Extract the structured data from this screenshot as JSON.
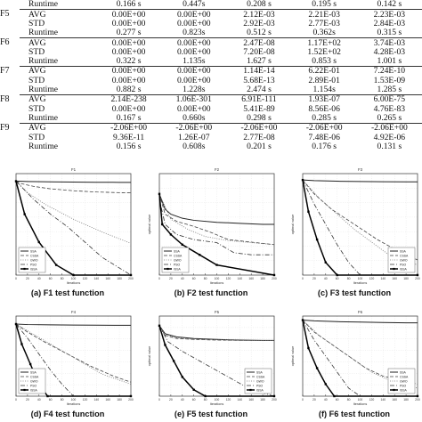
{
  "table": {
    "rows": [
      {
        "fn": "",
        "metric": "Runtime",
        "values": [
          "0.166 s",
          "0.447s",
          "0.208 s",
          "0.195 s",
          "0.142 s"
        ],
        "group_first": false,
        "last": true
      },
      {
        "fn": "F5",
        "metric": "AVG",
        "values": [
          "0.00E+00",
          "0.00E+00",
          "2.12E-03",
          "2.21E-03",
          "2.23E-03"
        ],
        "group_first": true,
        "last": false
      },
      {
        "fn": "",
        "metric": "STD",
        "values": [
          "0.00E+00",
          "0.00E+00",
          "2.92E-03",
          "2.77E-03",
          "2.84E-03"
        ],
        "group_first": false,
        "last": false
      },
      {
        "fn": "",
        "metric": "Runtime",
        "values": [
          "0.277 s",
          "0.823s",
          "0.512 s",
          "0.362s",
          "0.315 s"
        ],
        "group_first": false,
        "last": true
      },
      {
        "fn": "F6",
        "metric": "AVG",
        "values": [
          "0.00E+00",
          "0.00E+00",
          "2.47E-08",
          "1.17E+02",
          "3.74E-03"
        ],
        "group_first": true,
        "last": false
      },
      {
        "fn": "",
        "metric": "STD",
        "values": [
          "0.00E+00",
          "0.00E+00",
          "7.20E-08",
          "1.52E+02",
          "4.28E-03"
        ],
        "group_first": false,
        "last": false
      },
      {
        "fn": "",
        "metric": "Runtime",
        "values": [
          "0.322 s",
          "1.135s",
          "1.627 s",
          "0.853 s",
          "1.001 s"
        ],
        "group_first": false,
        "last": true
      },
      {
        "fn": "F7",
        "metric": "AVG",
        "values": [
          "0.00E+00",
          "0.00E+00",
          "1.14E-14",
          "6.22E-01",
          "7.24E-10"
        ],
        "group_first": true,
        "last": false
      },
      {
        "fn": "",
        "metric": "STD",
        "values": [
          "0.00E+00",
          "0.00E+00",
          "5.68E-13",
          "2.89E-01",
          "1.53E-09"
        ],
        "group_first": false,
        "last": false
      },
      {
        "fn": "",
        "metric": "Runtime",
        "values": [
          "0.882 s",
          "1.228s",
          "2.474 s",
          "1.154s",
          "1.285 s"
        ],
        "group_first": false,
        "last": true
      },
      {
        "fn": "F8",
        "metric": "AVG",
        "values": [
          "2.14E-238",
          "1.06E-301",
          "6.91E-111",
          "1.93E-07",
          "6.00E-75"
        ],
        "group_first": true,
        "last": false
      },
      {
        "fn": "",
        "metric": "STD",
        "values": [
          "0.00E+00",
          "0.00E+00",
          "5.41E-89",
          "8.56E-06",
          "4.76E-83"
        ],
        "group_first": false,
        "last": false
      },
      {
        "fn": "",
        "metric": "Runtime",
        "values": [
          "0.167 s",
          "0.660s",
          "0.298 s",
          "0.285 s",
          "0.265 s"
        ],
        "group_first": false,
        "last": true
      },
      {
        "fn": "F9",
        "metric": "AVG",
        "values": [
          "-2.06E+00",
          "-2.06E+00",
          "-2.06E+00",
          "-2.06E+00",
          "-2.06E+00"
        ],
        "group_first": true,
        "last": false
      },
      {
        "fn": "",
        "metric": "STD",
        "values": [
          "9.36E-11",
          "1.26E-07",
          "2.77E-08",
          "7.48E-06",
          "4.92E-06"
        ],
        "group_first": false,
        "last": false
      },
      {
        "fn": "",
        "metric": "Runtime",
        "values": [
          "0.156 s",
          "0.608s",
          "0.201 s",
          "0.176 s",
          "0.131 s"
        ],
        "group_first": false,
        "last": false
      }
    ]
  },
  "figures": [
    {
      "id": "F1",
      "caption": "(a) F1 test function"
    },
    {
      "id": "F2",
      "caption": "(b) F2 test function"
    },
    {
      "id": "F3",
      "caption": "(c) F3 test function"
    },
    {
      "id": "F4",
      "caption": "(d) F4 test function"
    },
    {
      "id": "F5",
      "caption": "(e) F5 test function"
    },
    {
      "id": "F6",
      "caption": "(f) F6 test function"
    }
  ],
  "chart_data": [
    {
      "type": "line",
      "title": "F1",
      "xlabel": "Iterations",
      "ylabel": "",
      "ylim_log10": [
        -70,
        10
      ],
      "xlim": [
        0,
        200
      ],
      "legend": [
        "SSA",
        "CSSA",
        "GWO",
        "PSO",
        "ISSA"
      ],
      "legend_placement": "bottom-left",
      "series": [
        {
          "x": [
            0,
            5,
            20,
            60,
            100,
            140,
            180,
            200
          ],
          "y_log10": [
            4,
            4,
            3.8,
            3.5,
            3.3,
            3.2,
            3.1,
            3.1
          ]
        },
        {
          "x": [
            0,
            10,
            30,
            60,
            100,
            140,
            180,
            200
          ],
          "y_log10": [
            4,
            2,
            0,
            -2,
            -3.5,
            -4.5,
            -5,
            -5.2
          ]
        },
        {
          "x": [
            0,
            20,
            50,
            100,
            150,
            200
          ],
          "y_log10": [
            4,
            -5,
            -14,
            -26,
            -36,
            -45
          ]
        },
        {
          "x": [
            0,
            30,
            60,
            90,
            120,
            150,
            200
          ],
          "y_log10": [
            4,
            -10,
            -22,
            -32,
            -44,
            -56,
            -70
          ]
        },
        {
          "x": [
            0,
            15,
            40,
            70,
            100,
            200
          ],
          "y_log10": [
            4,
            -22,
            -44,
            -62,
            -70,
            -70
          ]
        }
      ]
    },
    {
      "type": "line",
      "title": "F2",
      "xlabel": "Iterations",
      "ylabel": "optimal value",
      "ylim_log10": [
        -5,
        5
      ],
      "xlim": [
        0,
        200
      ],
      "legend": [
        "SSA",
        "CSSA",
        "GWO",
        "PSO",
        "ISSA"
      ],
      "legend_placement": "bottom-left",
      "series": [
        {
          "x": [
            0,
            10,
            20,
            40,
            60,
            100,
            140,
            180,
            200
          ],
          "y_log10": [
            3,
            1.5,
            1,
            0.6,
            0.4,
            0.2,
            0.1,
            0,
            0
          ]
        },
        {
          "x": [
            0,
            10,
            30,
            60,
            90,
            120,
            200
          ],
          "y_log10": [
            3,
            1,
            0.3,
            -0.2,
            -0.8,
            -1.5,
            -2
          ]
        },
        {
          "x": [
            0,
            20,
            50,
            80,
            120,
            160,
            200
          ],
          "y_log10": [
            3,
            0.5,
            -0.5,
            -1.2,
            -1.6,
            -1.8,
            -2
          ]
        },
        {
          "x": [
            0,
            10,
            30,
            60,
            100,
            130,
            160,
            200
          ],
          "y_log10": [
            2.5,
            0,
            -1,
            -1.5,
            -1.8,
            -2.8,
            -3,
            -3
          ]
        },
        {
          "x": [
            0,
            5,
            20,
            40,
            70,
            100,
            200
          ],
          "y_log10": [
            3,
            0,
            -1,
            -2,
            -3,
            -4,
            -5
          ]
        }
      ]
    },
    {
      "type": "line",
      "title": "F3",
      "xlabel": "Iterations",
      "ylabel": "optimal value",
      "ylim_log10": [
        -70,
        10
      ],
      "xlim": [
        0,
        200
      ],
      "legend": [
        "SSA",
        "CSSA",
        "GWO",
        "PSO",
        "ISSA"
      ],
      "legend_placement": "bottom-right",
      "series": [
        {
          "x": [
            0,
            20,
            60,
            100,
            140,
            180,
            200
          ],
          "y_log10": [
            5,
            4.5,
            4,
            3.8,
            3.6,
            3.5,
            3.5
          ]
        },
        {
          "x": [
            0,
            20,
            50,
            90,
            130,
            170,
            200
          ],
          "y_log10": [
            5,
            -6,
            -18,
            -30,
            -42,
            -52,
            -58
          ]
        },
        {
          "x": [
            0,
            30,
            60,
            90,
            120,
            150,
            200
          ],
          "y_log10": [
            5,
            -10,
            -22,
            -34,
            -44,
            -54,
            -62
          ]
        },
        {
          "x": [
            0,
            20,
            40,
            60,
            80,
            100,
            200
          ],
          "y_log10": [
            5,
            -14,
            -30,
            -46,
            -60,
            -70,
            -70
          ]
        },
        {
          "x": [
            0,
            10,
            25,
            40,
            60,
            200
          ],
          "y_log10": [
            5,
            -20,
            -42,
            -60,
            -70,
            -70
          ]
        }
      ]
    },
    {
      "type": "line",
      "title": "F4",
      "xlabel": "Iterations",
      "ylabel": "",
      "ylim_log10": [
        -70,
        10
      ],
      "xlim": [
        0,
        200
      ],
      "legend": [
        "SSA",
        "CSSA",
        "GWO",
        "PSO",
        "ISSA"
      ],
      "legend_placement": "bottom-left",
      "series": [
        {
          "x": [
            0,
            20,
            60,
            100,
            140,
            180,
            200
          ],
          "y_log10": [
            2,
            1.5,
            1.2,
            1,
            0.9,
            0.8,
            0.8
          ]
        },
        {
          "x": [
            0,
            20,
            50,
            90,
            130,
            170,
            200
          ],
          "y_log10": [
            2,
            -6,
            -16,
            -28,
            -40,
            -50,
            -56
          ]
        },
        {
          "x": [
            0,
            30,
            60,
            90,
            120,
            150,
            200
          ],
          "y_log10": [
            2,
            -8,
            -18,
            -28,
            -38,
            -48,
            -58
          ]
        },
        {
          "x": [
            0,
            20,
            40,
            60,
            80,
            100,
            200
          ],
          "y_log10": [
            2,
            -12,
            -28,
            -44,
            -58,
            -70,
            -70
          ]
        },
        {
          "x": [
            0,
            10,
            25,
            40,
            55,
            200
          ],
          "y_log10": [
            2,
            -18,
            -38,
            -58,
            -70,
            -70
          ]
        }
      ]
    },
    {
      "type": "line",
      "title": "F5",
      "xlabel": "Iterations",
      "ylabel": "optimal value",
      "ylim_log10": [
        -20,
        5
      ],
      "xlim": [
        0,
        200
      ],
      "legend": [
        "SSA",
        "CSSA",
        "GWO",
        "PSO",
        "ISSA"
      ],
      "legend_placement": "bottom-right",
      "series": [
        {
          "x": [
            0,
            10,
            30,
            60,
            100,
            140,
            180,
            200
          ],
          "y_log10": [
            2,
            -0.5,
            -1.5,
            -2,
            -2.3,
            -2.5,
            -2.6,
            -2.6
          ]
        },
        {
          "x": [
            0,
            10,
            30,
            60,
            100,
            140,
            180,
            200
          ],
          "y_log10": [
            2,
            -1,
            -2,
            -2.3,
            -2.5,
            -2.6,
            -2.6,
            -2.6
          ]
        },
        {
          "x": [
            0,
            10,
            30,
            60,
            100,
            140,
            180,
            200
          ],
          "y_log10": [
            2,
            -0.8,
            -1.8,
            -2.2,
            -2.4,
            -2.6,
            -2.6,
            -2.6
          ]
        },
        {
          "x": [
            0,
            15,
            40,
            70,
            100,
            130,
            160,
            200
          ],
          "y_log10": [
            2,
            -3,
            -6,
            -9,
            -12,
            -15,
            -18,
            -20
          ]
        },
        {
          "x": [
            0,
            10,
            25,
            40,
            60,
            80,
            200
          ],
          "y_log10": [
            2,
            -4,
            -9,
            -14,
            -18,
            -20,
            -20
          ]
        }
      ]
    },
    {
      "type": "line",
      "title": "F6",
      "xlabel": "Iterations",
      "ylabel": "optimal value",
      "ylim_log10": [
        -15,
        5
      ],
      "xlim": [
        0,
        200
      ],
      "legend": [
        "SSA",
        "CSSA",
        "GWO",
        "PSO",
        "ISSA"
      ],
      "legend_placement": "bottom-right",
      "series": [
        {
          "x": [
            0,
            20,
            60,
            100,
            140,
            180,
            200
          ],
          "y_log10": [
            4,
            3.8,
            3.6,
            3.5,
            3.4,
            3.3,
            3.3
          ]
        },
        {
          "x": [
            0,
            20,
            50,
            80,
            110,
            140,
            200
          ],
          "y_log10": [
            4,
            1,
            -2,
            -5,
            -8,
            -10,
            -12
          ]
        },
        {
          "x": [
            0,
            30,
            60,
            90,
            120,
            150,
            200
          ],
          "y_log10": [
            4,
            0,
            -3,
            -6,
            -9,
            -11,
            -13
          ]
        },
        {
          "x": [
            0,
            20,
            40,
            60,
            80,
            100,
            200
          ],
          "y_log10": [
            4,
            -1,
            -5,
            -9,
            -13,
            -15,
            -15
          ]
        },
        {
          "x": [
            0,
            10,
            25,
            40,
            55,
            200
          ],
          "y_log10": [
            4,
            -3,
            -8,
            -12,
            -15,
            -15
          ]
        }
      ]
    }
  ]
}
